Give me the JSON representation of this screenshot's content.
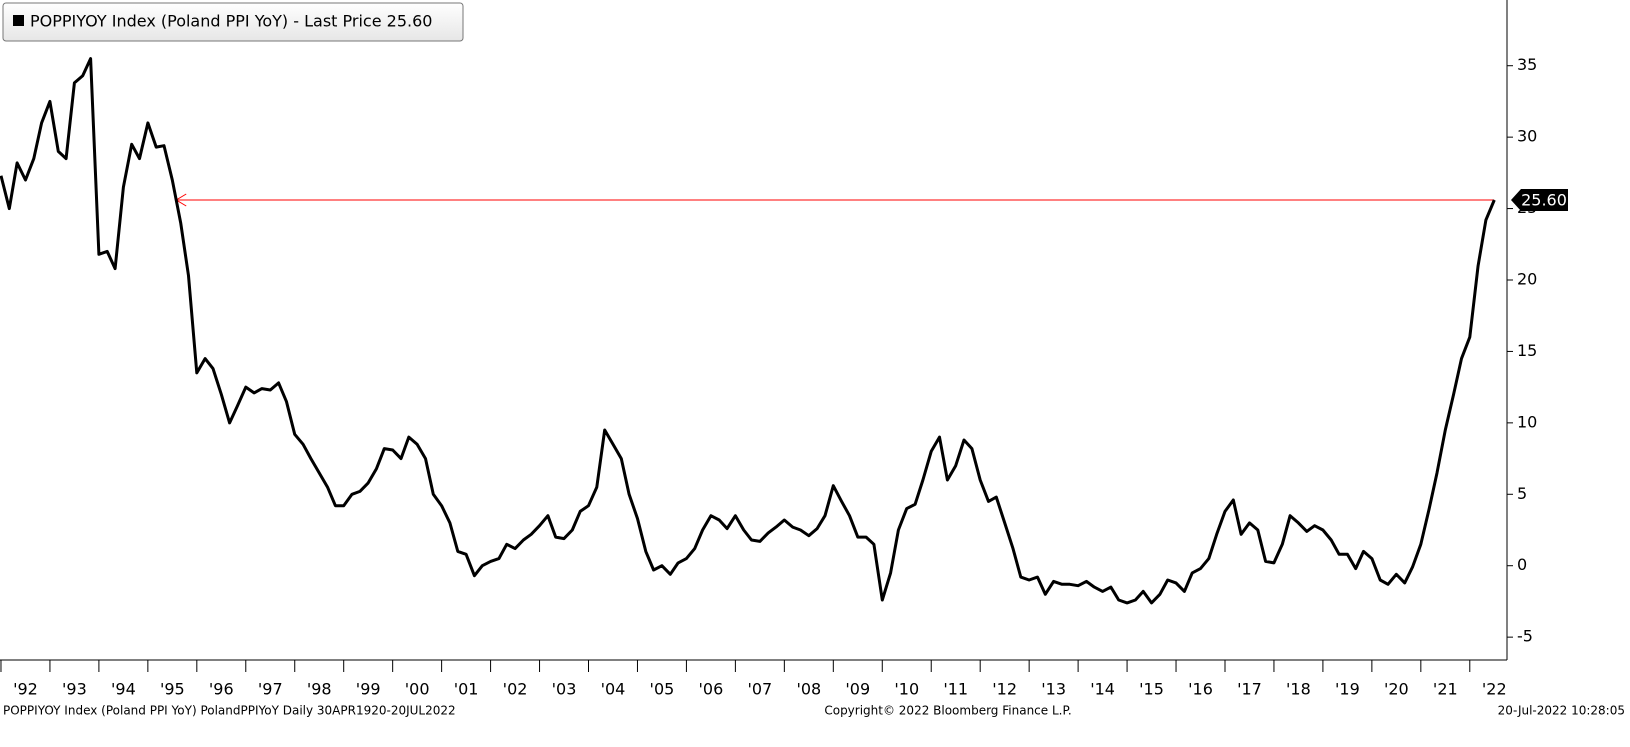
{
  "chart_data": {
    "type": "line",
    "series": [
      {
        "name": "POPPIYOY Index (Poland PPI YoY) - Last Price 25.60",
        "color": "#000000",
        "values": [
          27.3,
          25,
          28.2,
          27,
          28.5,
          31,
          32.5,
          29,
          28.5,
          33.8,
          34.3,
          35.5,
          21.8,
          22,
          20.8,
          26.5,
          29.5,
          28.5,
          31,
          29.3,
          29.4,
          27,
          24,
          20.3,
          13.5,
          14.5,
          13.8,
          12,
          10,
          11.2,
          12.5,
          12.1,
          12.4,
          12.3,
          12.8,
          11.5,
          9.2,
          8.5,
          7.5,
          6.5,
          5.5,
          4.2,
          4.2,
          5,
          5.2,
          5.8,
          6.8,
          8.2,
          8.1,
          7.5,
          9,
          8.5,
          7.5,
          5,
          4.2,
          3,
          1,
          0.8,
          -0.7,
          0,
          0.3,
          0.5,
          1.5,
          1.2,
          1.8,
          2.2,
          2.8,
          3.5,
          2,
          1.9,
          2.5,
          3.8,
          4.2,
          5.5,
          9.5,
          8.5,
          7.5,
          5,
          3.3,
          1,
          -0.3,
          0,
          -0.6,
          0.2,
          0.5,
          1.2,
          2.5,
          3.5,
          3.2,
          2.6,
          3.5,
          2.5,
          1.8,
          1.7,
          2.3,
          2.7,
          3.2,
          2.7,
          2.5,
          2.1,
          2.6,
          3.5,
          5.6,
          4.5,
          3.5,
          2,
          2,
          1.5,
          -2.4,
          -0.5,
          2.5,
          4,
          4.3,
          6,
          8,
          9,
          6,
          7,
          8.8,
          8.2,
          6,
          4.5,
          4.8,
          3,
          1.2,
          -0.8,
          -1,
          -0.8,
          -2,
          -1.1,
          -1.3,
          -1.3,
          -1.4,
          -1.1,
          -1.5,
          -1.8,
          -1.5,
          -2.4,
          -2.6,
          -2.4,
          -1.8,
          -2.6,
          -2,
          -1,
          -1.2,
          -1.8,
          -0.5,
          -0.2,
          0.5,
          2.2,
          3.8,
          4.6,
          2.2,
          3,
          2.5,
          0.3,
          0.2,
          1.5,
          3.5,
          3,
          2.4,
          2.8,
          2.5,
          1.8,
          0.8,
          0.8,
          -0.2,
          1,
          0.5,
          -1,
          -1.3,
          -0.6,
          -1.2,
          -0.1,
          1.5,
          4,
          6.5,
          9.5,
          12,
          14.5,
          16,
          21,
          24.2,
          25.6
        ]
      }
    ],
    "x": [
      1992,
      1992.17,
      1992.33,
      1992.5,
      1992.67,
      1992.83,
      1993,
      1993.17,
      1993.33,
      1993.5,
      1993.67,
      1993.83,
      1994,
      1994.17,
      1994.33,
      1994.5,
      1994.67,
      1994.83,
      1995,
      1995.17,
      1995.33,
      1995.5,
      1995.67,
      1995.83,
      1996,
      1996.17,
      1996.33,
      1996.5,
      1996.67,
      1996.83,
      1997,
      1997.17,
      1997.33,
      1997.5,
      1997.67,
      1997.83,
      1998,
      1998.17,
      1998.33,
      1998.5,
      1998.67,
      1998.83,
      1999,
      1999.17,
      1999.33,
      1999.5,
      1999.67,
      1999.83,
      2000,
      2000.17,
      2000.33,
      2000.5,
      2000.67,
      2000.83,
      2001,
      2001.17,
      2001.33,
      2001.5,
      2001.67,
      2001.83,
      2002,
      2002.17,
      2002.33,
      2002.5,
      2002.67,
      2002.83,
      2003,
      2003.17,
      2003.33,
      2003.5,
      2003.67,
      2003.83,
      2004,
      2004.17,
      2004.33,
      2004.5,
      2004.67,
      2004.83,
      2005,
      2005.17,
      2005.33,
      2005.5,
      2005.67,
      2005.83,
      2006,
      2006.17,
      2006.33,
      2006.5,
      2006.67,
      2006.83,
      2007,
      2007.17,
      2007.33,
      2007.5,
      2007.67,
      2007.83,
      2008,
      2008.17,
      2008.33,
      2008.5,
      2008.67,
      2008.83,
      2009,
      2009.17,
      2009.33,
      2009.5,
      2009.67,
      2009.83,
      2010,
      2010.17,
      2010.33,
      2010.5,
      2010.67,
      2010.83,
      2011,
      2011.17,
      2011.33,
      2011.5,
      2011.67,
      2011.83,
      2012,
      2012.17,
      2012.33,
      2012.5,
      2012.67,
      2012.83,
      2013,
      2013.17,
      2013.33,
      2013.5,
      2013.67,
      2013.83,
      2014,
      2014.17,
      2014.33,
      2014.5,
      2014.67,
      2014.83,
      2015,
      2015.17,
      2015.33,
      2015.5,
      2015.67,
      2015.83,
      2016,
      2016.17,
      2016.33,
      2016.5,
      2016.67,
      2016.83,
      2017,
      2017.17,
      2017.33,
      2017.5,
      2017.67,
      2017.83,
      2018,
      2018.17,
      2018.33,
      2018.5,
      2018.67,
      2018.83,
      2019,
      2019.17,
      2019.33,
      2019.5,
      2019.67,
      2019.83,
      2020,
      2020.17,
      2020.33,
      2020.5,
      2020.67,
      2020.83,
      2021,
      2021.17,
      2021.33,
      2021.5,
      2021.67,
      2021.83,
      2022,
      2022.17,
      2022.33,
      2022.5
    ],
    "xlim": [
      1991.98,
      2022.76
    ],
    "xticks": [
      {
        "value": 1992,
        "label": "'92"
      },
      {
        "value": 1993,
        "label": "'93"
      },
      {
        "value": 1994,
        "label": "'94"
      },
      {
        "value": 1995,
        "label": "'95"
      },
      {
        "value": 1996,
        "label": "'96"
      },
      {
        "value": 1997,
        "label": "'97"
      },
      {
        "value": 1998,
        "label": "'98"
      },
      {
        "value": 1999,
        "label": "'99"
      },
      {
        "value": 2000,
        "label": "'00"
      },
      {
        "value": 2001,
        "label": "'01"
      },
      {
        "value": 2002,
        "label": "'02"
      },
      {
        "value": 2003,
        "label": "'03"
      },
      {
        "value": 2004,
        "label": "'04"
      },
      {
        "value": 2005,
        "label": "'05"
      },
      {
        "value": 2006,
        "label": "'06"
      },
      {
        "value": 2007,
        "label": "'07"
      },
      {
        "value": 2008,
        "label": "'08"
      },
      {
        "value": 2009,
        "label": "'09"
      },
      {
        "value": 2010,
        "label": "'10"
      },
      {
        "value": 2011,
        "label": "'11"
      },
      {
        "value": 2012,
        "label": "'12"
      },
      {
        "value": 2013,
        "label": "'13"
      },
      {
        "value": 2014,
        "label": "'14"
      },
      {
        "value": 2015,
        "label": "'15"
      },
      {
        "value": 2016,
        "label": "'16"
      },
      {
        "value": 2017,
        "label": "'17"
      },
      {
        "value": 2018,
        "label": "'18"
      },
      {
        "value": 2019,
        "label": "'19"
      },
      {
        "value": 2020,
        "label": "'20"
      },
      {
        "value": 2021,
        "label": "'21"
      },
      {
        "value": 2022,
        "label": "'22"
      }
    ],
    "ylim": [
      -6.6,
      39.6
    ],
    "yticks": [
      -5,
      0,
      5,
      10,
      15,
      20,
      25,
      30,
      35
    ],
    "last_price": {
      "value": 25.6,
      "label": "25.60"
    },
    "reference_color": "#ff0000",
    "footer": {
      "left": "POPPIYOY Index (Poland PPI YoY) PolandPPIYoY  Daily 30APR1920-20JUL2022",
      "center": "Copyright© 2022 Bloomberg Finance L.P.",
      "right": "20-Jul-2022 10:28:05"
    }
  }
}
